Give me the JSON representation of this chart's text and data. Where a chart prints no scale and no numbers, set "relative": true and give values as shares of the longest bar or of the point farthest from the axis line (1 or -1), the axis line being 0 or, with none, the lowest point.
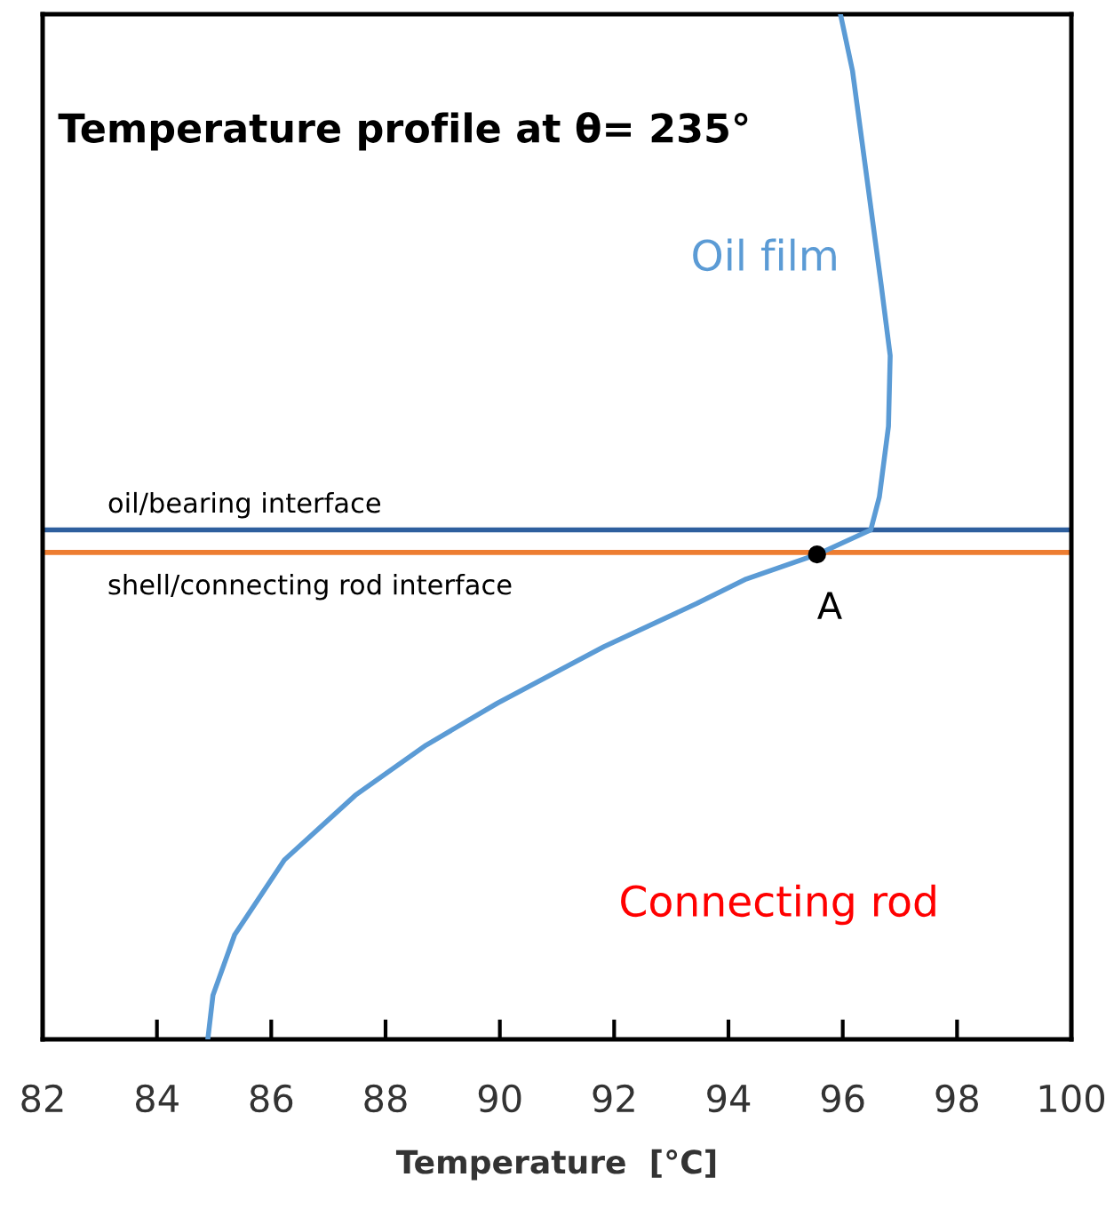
{
  "chart_data": {
    "type": "line",
    "title": "Temperature profile at θ= 235°",
    "xlabel": "Temperature  [°C]",
    "relative": true,
    "tick_labels": "x",
    "grid": false,
    "marker": "none",
    "line_style": "solid",
    "xlim": [
      82,
      100
    ],
    "xticks": [
      82,
      84,
      86,
      88,
      90,
      92,
      94,
      96,
      98,
      100
    ],
    "series": [
      {
        "color": "#5b9bd5",
        "x": [
          84.89,
          84.98,
          85.36,
          86.23,
          87.47,
          88.71,
          89.96,
          91.82,
          93.44,
          94.31,
          95.55,
          96.49,
          96.64,
          96.8,
          96.83,
          96.67,
          96.42,
          96.17,
          95.96
        ],
        "values": [
          0.0,
          0.043,
          0.102,
          0.175,
          0.238,
          0.287,
          0.328,
          0.383,
          0.425,
          0.449,
          0.473,
          0.497,
          0.529,
          0.598,
          0.667,
          0.737,
          0.841,
          0.945,
          1.0
        ]
      },
      {
        "type": "scatter",
        "marker": "circle",
        "color": "#000000",
        "x": [
          95.55
        ],
        "values": [
          0.473
        ]
      }
    ],
    "ref_lines": [
      {
        "axis": "y",
        "value": 0.497,
        "label": "oil/bearing interface",
        "color": "#2e5f9e"
      },
      {
        "axis": "y",
        "value": 0.475,
        "label": "shell/connecting rod interface",
        "color": "#ed7d31"
      }
    ],
    "annotations": [
      {
        "text": "A",
        "x": 95.55,
        "y": 0.473
      },
      "Oil film",
      "Connecting rod"
    ]
  }
}
